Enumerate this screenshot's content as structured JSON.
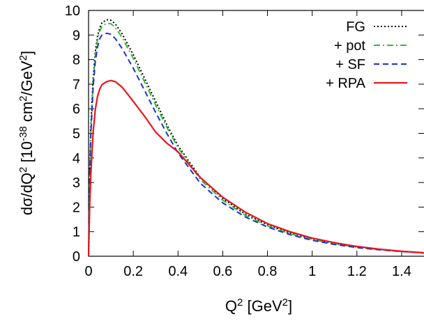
{
  "chart_data": {
    "type": "line",
    "title": "",
    "xlabel": "Q",
    "xlabel_sup": "2",
    "xlabel_unit_pre": " [GeV",
    "xlabel_unit_sup": "2",
    "xlabel_unit_post": "]",
    "ylabel_parts": [
      {
        "t": "dσ/dQ",
        "sup": false
      },
      {
        "t": "2",
        "sup": true
      },
      {
        "t": " [10",
        "sup": false
      },
      {
        "t": "-38",
        "sup": true
      },
      {
        "t": " cm",
        "sup": false
      },
      {
        "t": "2",
        "sup": true
      },
      {
        "t": "/GeV",
        "sup": false
      },
      {
        "t": "2",
        "sup": true
      },
      {
        "t": "]",
        "sup": false
      }
    ],
    "xlim": [
      0,
      1.5
    ],
    "ylim": [
      0,
      10
    ],
    "xticks": [
      "0",
      "0.2",
      "0.4",
      "0.6",
      "0.8",
      "1",
      "1.2",
      "1.4"
    ],
    "xtick_values": [
      0,
      0.2,
      0.4,
      0.6,
      0.8,
      1.0,
      1.2,
      1.4
    ],
    "yticks": [
      "0",
      "1",
      "2",
      "3",
      "4",
      "5",
      "6",
      "7",
      "8",
      "9",
      "10"
    ],
    "ytick_values": [
      0,
      1,
      2,
      3,
      4,
      5,
      6,
      7,
      8,
      9,
      10
    ],
    "grid": false,
    "legend_position": "top-right",
    "series": [
      {
        "name": "FG",
        "color": "#000000",
        "style": "dotted",
        "x": [
          0,
          0.005,
          0.01,
          0.02,
          0.03,
          0.04,
          0.05,
          0.06,
          0.08,
          0.1,
          0.12,
          0.15,
          0.2,
          0.25,
          0.3,
          0.35,
          0.4,
          0.5,
          0.6,
          0.7,
          0.8,
          0.9,
          1.0,
          1.1,
          1.2,
          1.3,
          1.4,
          1.5
        ],
        "y": [
          0,
          3.5,
          5.2,
          7.2,
          8.3,
          8.95,
          9.3,
          9.5,
          9.62,
          9.6,
          9.45,
          9.05,
          8.2,
          7.25,
          6.3,
          5.35,
          4.5,
          3.2,
          2.35,
          1.72,
          1.28,
          0.95,
          0.7,
          0.52,
          0.38,
          0.28,
          0.2,
          0.15
        ]
      },
      {
        "name": "+ pot",
        "color": "#33bb33",
        "style": "dashdot",
        "x": [
          0,
          0.005,
          0.01,
          0.02,
          0.03,
          0.04,
          0.05,
          0.06,
          0.08,
          0.1,
          0.12,
          0.15,
          0.2,
          0.25,
          0.3,
          0.35,
          0.4,
          0.5,
          0.6,
          0.7,
          0.8,
          0.9,
          1.0,
          1.1,
          1.2,
          1.3,
          1.4,
          1.5
        ],
        "y": [
          0,
          3.4,
          5.1,
          7.05,
          8.15,
          8.8,
          9.15,
          9.35,
          9.48,
          9.46,
          9.3,
          8.9,
          8.05,
          7.1,
          6.15,
          5.25,
          4.42,
          3.12,
          2.28,
          1.67,
          1.24,
          0.92,
          0.68,
          0.5,
          0.37,
          0.27,
          0.2,
          0.14
        ]
      },
      {
        "name": "+ SF",
        "color": "#1f2fd0",
        "style": "dashed",
        "x": [
          0,
          0.005,
          0.01,
          0.02,
          0.03,
          0.04,
          0.05,
          0.06,
          0.08,
          0.1,
          0.12,
          0.15,
          0.2,
          0.25,
          0.3,
          0.35,
          0.4,
          0.5,
          0.6,
          0.7,
          0.8,
          0.9,
          1.0,
          1.1,
          1.2,
          1.3,
          1.4,
          1.5
        ],
        "y": [
          0,
          3.2,
          4.9,
          6.8,
          7.9,
          8.5,
          8.85,
          9.0,
          9.07,
          9.03,
          8.85,
          8.45,
          7.65,
          6.75,
          5.85,
          5.0,
          4.2,
          2.97,
          2.17,
          1.6,
          1.19,
          0.88,
          0.65,
          0.48,
          0.35,
          0.26,
          0.19,
          0.13
        ]
      },
      {
        "name": "+ RPA",
        "color": "#e8141e",
        "style": "solid",
        "x": [
          0,
          0.005,
          0.01,
          0.02,
          0.03,
          0.04,
          0.05,
          0.06,
          0.08,
          0.1,
          0.12,
          0.15,
          0.2,
          0.25,
          0.3,
          0.35,
          0.4,
          0.5,
          0.6,
          0.7,
          0.8,
          0.9,
          1.0,
          1.1,
          1.2,
          1.3,
          1.4,
          1.5
        ],
        "y": [
          0,
          2.0,
          3.3,
          5.0,
          5.95,
          6.5,
          6.8,
          6.98,
          7.1,
          7.15,
          7.1,
          6.88,
          6.3,
          5.7,
          5.05,
          4.6,
          4.25,
          3.2,
          2.4,
          1.8,
          1.33,
          1.0,
          0.74,
          0.55,
          0.4,
          0.29,
          0.2,
          0.14
        ]
      }
    ]
  }
}
